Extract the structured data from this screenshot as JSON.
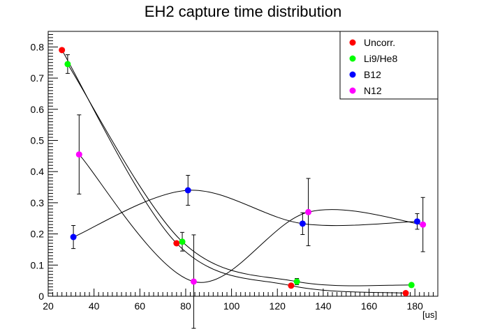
{
  "chart_data": {
    "type": "scatter",
    "title": "EH2 capture time distribution",
    "xlabel": "[us]",
    "ylabel": "",
    "xlim": [
      20,
      190
    ],
    "ylim": [
      0,
      0.85
    ],
    "x_ticks": [
      20,
      40,
      60,
      80,
      100,
      120,
      140,
      160,
      180
    ],
    "y_ticks": [
      0,
      0.1,
      0.2,
      0.3,
      0.4,
      0.5,
      0.6,
      0.7,
      0.8
    ],
    "x_tick_labels": [
      "20",
      "40",
      "60",
      "80",
      "100",
      "120",
      "140",
      "160",
      "180"
    ],
    "y_tick_labels": [
      "0",
      "0.1",
      "0.2",
      "0.3",
      "0.4",
      "0.5",
      "0.6",
      "0.7",
      "0.8"
    ],
    "grid": false,
    "legend_position": "top-right",
    "series": [
      {
        "name": "Uncorr.",
        "color": "#ff0000",
        "points": [
          {
            "x": 26,
            "y": 0.79,
            "err": 0.0
          },
          {
            "x": 76,
            "y": 0.17,
            "err": 0.0
          },
          {
            "x": 126,
            "y": 0.034,
            "err": 0.0
          },
          {
            "x": 176,
            "y": 0.01,
            "err": 0.0
          }
        ]
      },
      {
        "name": "Li9/He8",
        "color": "#00ff00",
        "points": [
          {
            "x": 28.5,
            "y": 0.745,
            "err": 0.03
          },
          {
            "x": 78.5,
            "y": 0.175,
            "err": 0.03
          },
          {
            "x": 128.5,
            "y": 0.047,
            "err": 0.01
          },
          {
            "x": 178.5,
            "y": 0.036,
            "err": 0.006
          }
        ]
      },
      {
        "name": "B12",
        "color": "#0000ff",
        "points": [
          {
            "x": 31,
            "y": 0.19,
            "err": 0.037
          },
          {
            "x": 81,
            "y": 0.34,
            "err": 0.048
          },
          {
            "x": 131,
            "y": 0.233,
            "err": 0.035
          },
          {
            "x": 181,
            "y": 0.24,
            "err": 0.025
          }
        ]
      },
      {
        "name": "N12",
        "color": "#ff00ff",
        "points": [
          {
            "x": 33.5,
            "y": 0.455,
            "err": 0.127
          },
          {
            "x": 83.5,
            "y": 0.047,
            "err": 0.15
          },
          {
            "x": 133.5,
            "y": 0.27,
            "err": 0.108
          },
          {
            "x": 183.5,
            "y": 0.23,
            "err": 0.087
          }
        ]
      }
    ]
  }
}
